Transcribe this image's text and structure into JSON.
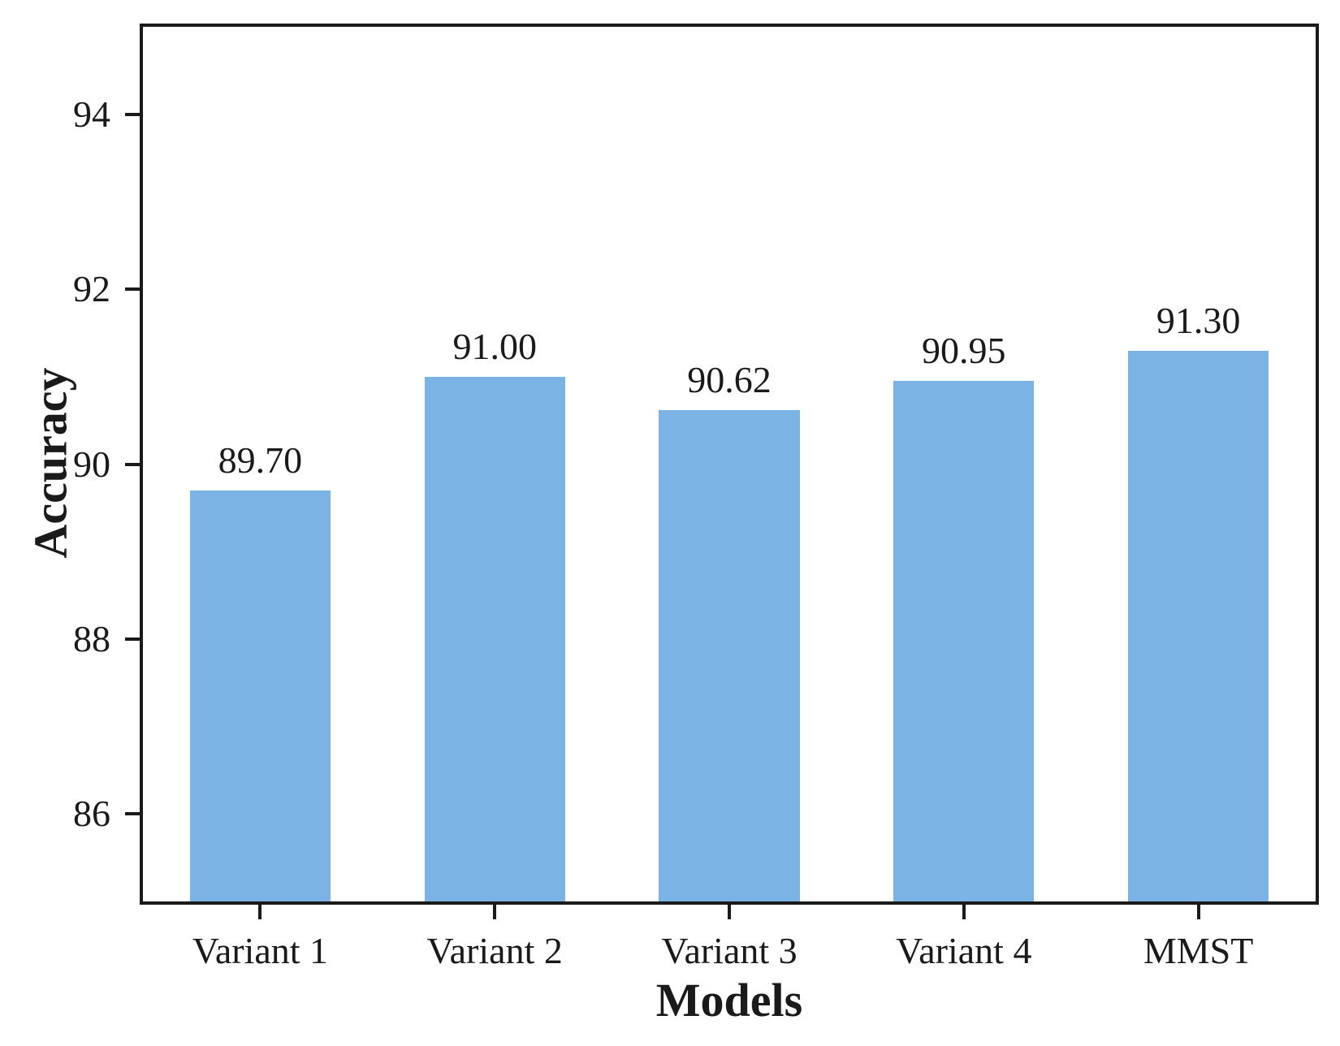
{
  "chart_data": {
    "type": "bar",
    "title": "",
    "xlabel": "Models",
    "ylabel": "Accuracy",
    "categories": [
      "Variant 1",
      "Variant 2",
      "Variant 3",
      "Variant 4",
      "MMST"
    ],
    "values": [
      89.7,
      91.0,
      90.62,
      90.95,
      91.3
    ],
    "value_labels": [
      "89.70",
      "91.00",
      "90.62",
      "90.95",
      "91.30"
    ],
    "ylim": [
      85,
      95
    ],
    "yticks": [
      "86",
      "88",
      "90",
      "92",
      "94"
    ],
    "grid": false,
    "legend": null,
    "bar_color": "#7BB4E4",
    "axis_color": "#1a1a1a",
    "background_color": "#ffffff"
  }
}
